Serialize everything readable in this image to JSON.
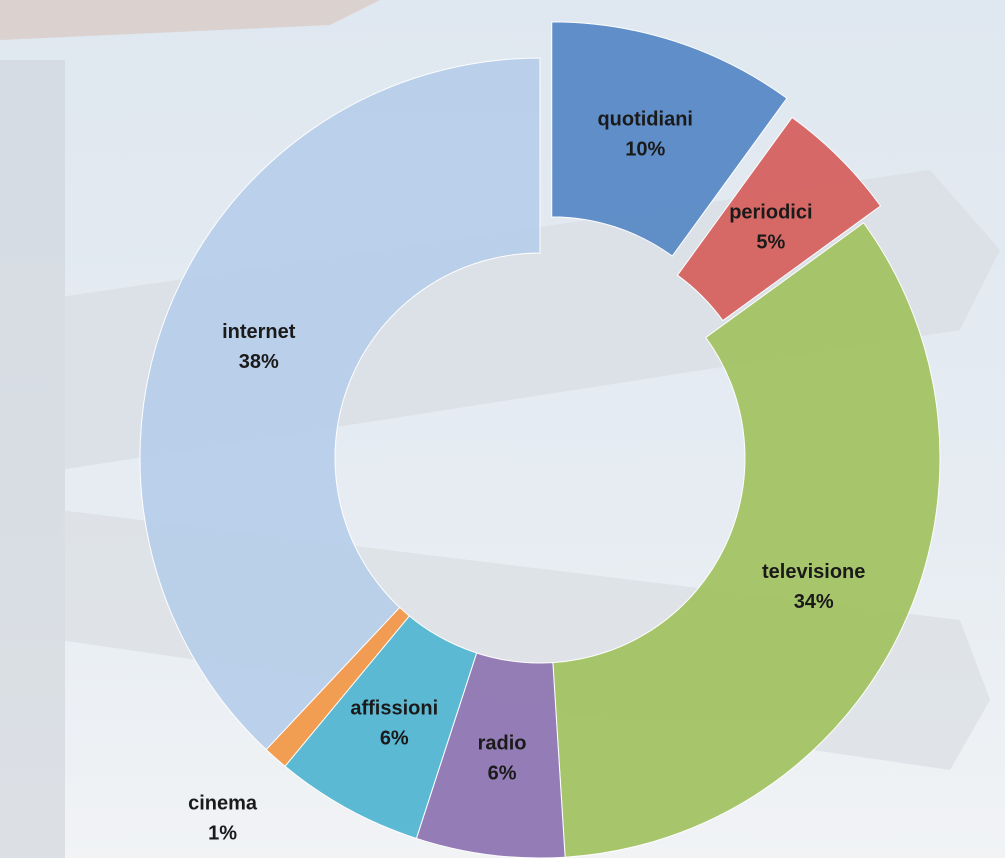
{
  "chart_data": {
    "type": "donut",
    "categories": [
      "quotidiani",
      "periodici",
      "televisione",
      "radio",
      "affissioni",
      "cinema",
      "internet"
    ],
    "values": [
      10,
      5,
      34,
      6,
      6,
      1,
      38
    ],
    "value_labels": [
      "10%",
      "5%",
      "34%",
      "6%",
      "6%",
      "1%",
      "38%"
    ],
    "colors": [
      "#5a8ac6",
      "#d66360",
      "#a4c464",
      "#9077b3",
      "#55b7d3",
      "#f2994a",
      "#b9cfea"
    ]
  }
}
